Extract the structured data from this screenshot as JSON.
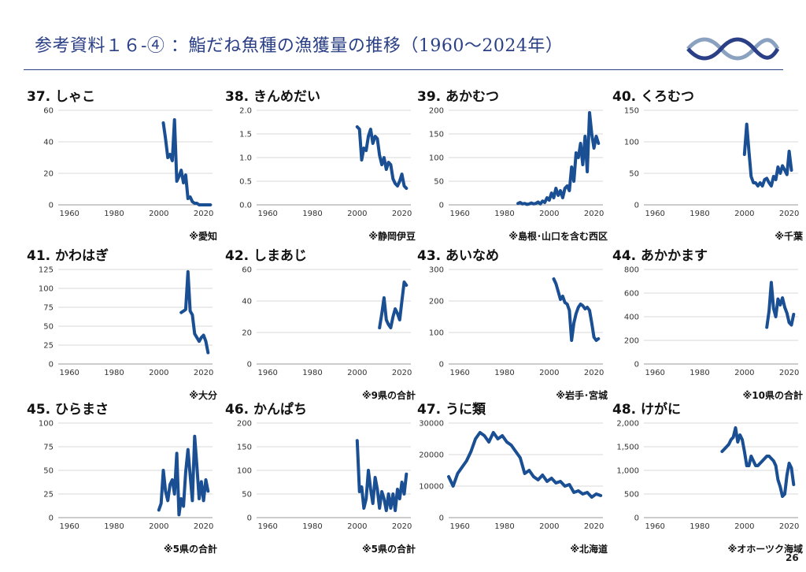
{
  "header": {
    "title": "参考資料１６-④ ：鮨だね魚種の漁獲量の推移（1960～2024年）",
    "page_number": "26"
  },
  "colors": {
    "line": "#1a4f93",
    "accent": "#2a3f86",
    "grid": "#d9d9d9"
  },
  "chart_data": [
    {
      "type": "line",
      "title": "37. しゃこ",
      "note": "※愛知",
      "xlim": [
        1955,
        2024
      ],
      "xticks": [
        1960,
        1980,
        2000,
        2020
      ],
      "ylim": [
        0,
        60
      ],
      "yticks": [
        0,
        20,
        40,
        60
      ],
      "ytick_labels": [
        "0",
        "20",
        "40",
        "60"
      ],
      "x": [
        2002,
        2003,
        2004,
        2005,
        2006,
        2007,
        2008,
        2009,
        2010,
        2011,
        2012,
        2013,
        2014,
        2015,
        2016,
        2017,
        2018,
        2019,
        2020,
        2021,
        2022,
        2023
      ],
      "y": [
        52,
        42,
        30,
        32,
        28,
        54,
        15,
        18,
        22,
        14,
        19,
        4,
        5,
        2,
        1,
        1,
        0,
        0,
        0,
        0,
        0,
        0
      ]
    },
    {
      "type": "line",
      "title": "38. きんめだい",
      "note": "※静岡伊豆",
      "xlim": [
        1955,
        2024
      ],
      "xticks": [
        1960,
        1980,
        2000,
        2020
      ],
      "ylim": [
        0,
        2
      ],
      "yticks": [
        0,
        0.5,
        1,
        1.5,
        2
      ],
      "ytick_labels": [
        "0.0",
        "0.5",
        "1.0",
        "1.5",
        "2.0"
      ],
      "x": [
        2000,
        2001,
        2002,
        2003,
        2004,
        2005,
        2006,
        2007,
        2008,
        2009,
        2010,
        2011,
        2012,
        2013,
        2014,
        2015,
        2016,
        2017,
        2018,
        2019,
        2020,
        2021,
        2022
      ],
      "y": [
        1.65,
        1.6,
        0.95,
        1.2,
        1.15,
        1.45,
        1.6,
        1.3,
        1.45,
        1.4,
        1.05,
        0.85,
        1.0,
        0.75,
        0.9,
        0.85,
        0.55,
        0.45,
        0.4,
        0.5,
        0.65,
        0.4,
        0.35
      ]
    },
    {
      "type": "line",
      "title": "39. あかむつ",
      "note": "※島根･山口を含む西区",
      "xlim": [
        1955,
        2024
      ],
      "xticks": [
        1960,
        1980,
        2000,
        2020
      ],
      "ylim": [
        0,
        200
      ],
      "yticks": [
        0,
        50,
        100,
        150,
        200
      ],
      "ytick_labels": [
        "0",
        "50",
        "100",
        "150",
        "200"
      ],
      "x": [
        1986,
        1987,
        1988,
        1989,
        1990,
        1991,
        1992,
        1993,
        1994,
        1995,
        1996,
        1997,
        1998,
        1999,
        2000,
        2001,
        2002,
        2003,
        2004,
        2005,
        2006,
        2007,
        2008,
        2009,
        2010,
        2011,
        2012,
        2013,
        2014,
        2015,
        2016,
        2017,
        2018,
        2019,
        2020,
        2021,
        2022
      ],
      "y": [
        3,
        5,
        2,
        3,
        1,
        2,
        4,
        2,
        3,
        6,
        2,
        8,
        5,
        15,
        10,
        25,
        15,
        35,
        20,
        30,
        15,
        35,
        40,
        30,
        80,
        50,
        110,
        100,
        130,
        85,
        145,
        70,
        195,
        150,
        120,
        145,
        130
      ]
    },
    {
      "type": "line",
      "title": "40. くろむつ",
      "note": "※千葉",
      "xlim": [
        1955,
        2024
      ],
      "xticks": [
        1960,
        1980,
        2000,
        2020
      ],
      "ylim": [
        0,
        150
      ],
      "yticks": [
        0,
        50,
        100,
        150
      ],
      "ytick_labels": [
        "0",
        "50",
        "100",
        "150"
      ],
      "x": [
        2000,
        2001,
        2002,
        2003,
        2004,
        2005,
        2006,
        2007,
        2008,
        2009,
        2010,
        2011,
        2012,
        2013,
        2014,
        2015,
        2016,
        2017,
        2018,
        2019,
        2020,
        2021
      ],
      "y": [
        80,
        128,
        85,
        45,
        35,
        35,
        30,
        35,
        30,
        40,
        42,
        35,
        30,
        45,
        40,
        60,
        50,
        62,
        55,
        48,
        85,
        55
      ]
    },
    {
      "type": "line",
      "title": "41. かわはぎ",
      "note": "※大分",
      "xlim": [
        1955,
        2024
      ],
      "xticks": [
        1960,
        1980,
        2000,
        2020
      ],
      "ylim": [
        0,
        125
      ],
      "yticks": [
        0,
        25,
        50,
        75,
        100,
        125
      ],
      "ytick_labels": [
        "0",
        "25",
        "50",
        "75",
        "100",
        "125"
      ],
      "x": [
        2010,
        2011,
        2012,
        2013,
        2014,
        2015,
        2016,
        2017,
        2018,
        2019,
        2020,
        2021,
        2022
      ],
      "y": [
        68,
        70,
        72,
        122,
        70,
        65,
        40,
        35,
        30,
        35,
        38,
        30,
        15
      ]
    },
    {
      "type": "line",
      "title": "42. しまあじ",
      "note": "※9県の合計",
      "xlim": [
        1955,
        2024
      ],
      "xticks": [
        1960,
        1980,
        2000,
        2020
      ],
      "ylim": [
        0,
        60
      ],
      "yticks": [
        0,
        20,
        40,
        60
      ],
      "ytick_labels": [
        "0",
        "20",
        "40",
        "60"
      ],
      "x": [
        2010,
        2011,
        2012,
        2013,
        2014,
        2015,
        2016,
        2017,
        2018,
        2019,
        2020,
        2021,
        2022
      ],
      "y": [
        23,
        32,
        42,
        28,
        25,
        23,
        30,
        35,
        32,
        28,
        40,
        52,
        50
      ]
    },
    {
      "type": "line",
      "title": "43. あいなめ",
      "note": "※岩手･宮城",
      "xlim": [
        1955,
        2024
      ],
      "xticks": [
        1960,
        1980,
        2000,
        2020
      ],
      "ylim": [
        0,
        300
      ],
      "yticks": [
        0,
        100,
        200,
        300
      ],
      "ytick_labels": [
        "0",
        "100",
        "200",
        "300"
      ],
      "x": [
        2002,
        2003,
        2004,
        2005,
        2006,
        2007,
        2008,
        2009,
        2010,
        2011,
        2012,
        2013,
        2014,
        2015,
        2016,
        2017,
        2018,
        2019,
        2020,
        2021,
        2022
      ],
      "y": [
        270,
        255,
        230,
        205,
        215,
        195,
        190,
        170,
        75,
        130,
        160,
        180,
        190,
        185,
        175,
        180,
        170,
        130,
        85,
        75,
        80
      ]
    },
    {
      "type": "line",
      "title": "44. あかかます",
      "note": "※10県の合計",
      "xlim": [
        1955,
        2024
      ],
      "xticks": [
        1960,
        1980,
        2000,
        2020
      ],
      "ylim": [
        0,
        800
      ],
      "yticks": [
        0,
        200,
        400,
        600,
        800
      ],
      "ytick_labels": [
        "0",
        "200",
        "400",
        "600",
        "800"
      ],
      "x": [
        2010,
        2011,
        2012,
        2013,
        2014,
        2015,
        2016,
        2017,
        2018,
        2019,
        2020,
        2021,
        2022
      ],
      "y": [
        310,
        450,
        690,
        470,
        400,
        550,
        500,
        560,
        480,
        430,
        350,
        330,
        420
      ]
    },
    {
      "type": "line",
      "title": "45. ひらまさ",
      "note": "※5県の合計",
      "xlim": [
        1955,
        2024
      ],
      "xticks": [
        1960,
        1980,
        2000,
        2020
      ],
      "ylim": [
        0,
        100
      ],
      "yticks": [
        0,
        25,
        50,
        75,
        100
      ],
      "ytick_labels": [
        "0",
        "25",
        "50",
        "75",
        "100"
      ],
      "x": [
        2000,
        2001,
        2002,
        2003,
        2004,
        2005,
        2006,
        2007,
        2008,
        2009,
        2010,
        2011,
        2012,
        2013,
        2014,
        2015,
        2016,
        2017,
        2018,
        2019,
        2020,
        2021,
        2022
      ],
      "y": [
        8,
        15,
        50,
        28,
        18,
        35,
        40,
        25,
        68,
        3,
        20,
        12,
        48,
        72,
        45,
        18,
        86,
        55,
        20,
        38,
        18,
        40,
        28
      ]
    },
    {
      "type": "line",
      "title": "46. かんぱち",
      "note": "※5県の合計",
      "xlim": [
        1955,
        2024
      ],
      "xticks": [
        1960,
        1980,
        2000,
        2020
      ],
      "ylim": [
        0,
        200
      ],
      "yticks": [
        0,
        50,
        100,
        150,
        200
      ],
      "ytick_labels": [
        "0",
        "50",
        "100",
        "150",
        "200"
      ],
      "x": [
        2000,
        2001,
        2002,
        2003,
        2004,
        2005,
        2006,
        2007,
        2008,
        2009,
        2010,
        2011,
        2012,
        2013,
        2014,
        2015,
        2016,
        2017,
        2018,
        2019,
        2020,
        2021,
        2022
      ],
      "y": [
        163,
        55,
        65,
        20,
        40,
        100,
        60,
        30,
        85,
        60,
        20,
        55,
        40,
        15,
        50,
        20,
        50,
        15,
        60,
        40,
        75,
        50,
        92
      ]
    },
    {
      "type": "line",
      "title": "47. うに類",
      "note": "※北海道",
      "xlim": [
        1955,
        2024
      ],
      "xticks": [
        1960,
        1980,
        2000,
        2020
      ],
      "ylim": [
        0,
        30000
      ],
      "yticks": [
        0,
        10000,
        20000,
        30000
      ],
      "ytick_labels": [
        "0",
        "10000",
        "20000",
        "30000"
      ],
      "x": [
        1955,
        1957,
        1959,
        1961,
        1963,
        1965,
        1967,
        1969,
        1971,
        1973,
        1975,
        1977,
        1979,
        1981,
        1983,
        1985,
        1987,
        1989,
        1991,
        1993,
        1995,
        1997,
        1999,
        2001,
        2003,
        2005,
        2007,
        2009,
        2011,
        2013,
        2015,
        2017,
        2019,
        2021,
        2023
      ],
      "y": [
        13000,
        10000,
        14000,
        16000,
        18000,
        21000,
        25000,
        27000,
        26000,
        24000,
        27000,
        25000,
        26000,
        24000,
        23000,
        21000,
        19000,
        14000,
        15000,
        13000,
        12000,
        13500,
        11500,
        12500,
        11000,
        11500,
        10000,
        10500,
        8000,
        8500,
        7500,
        8000,
        6500,
        7500,
        7000
      ]
    },
    {
      "type": "line",
      "title": "48. けがに",
      "note": "※オホーツク海域",
      "xlim": [
        1955,
        2024
      ],
      "xticks": [
        1960,
        1980,
        2000,
        2020
      ],
      "ylim": [
        0,
        2000
      ],
      "yticks": [
        0,
        500,
        1000,
        1500,
        2000
      ],
      "ytick_labels": [
        "0",
        "500",
        "1,000",
        "1,500",
        "2,000"
      ],
      "x": [
        1990,
        1991,
        1992,
        1993,
        1994,
        1995,
        1996,
        1997,
        1998,
        1999,
        2000,
        2001,
        2002,
        2003,
        2004,
        2005,
        2006,
        2007,
        2008,
        2009,
        2010,
        2011,
        2012,
        2013,
        2014,
        2015,
        2016,
        2017,
        2018,
        2019,
        2020,
        2021,
        2022
      ],
      "y": [
        1400,
        1450,
        1500,
        1550,
        1650,
        1700,
        1900,
        1600,
        1750,
        1650,
        1400,
        1100,
        1100,
        1300,
        1200,
        1100,
        1100,
        1150,
        1200,
        1250,
        1300,
        1300,
        1250,
        1200,
        1100,
        800,
        650,
        450,
        500,
        900,
        1150,
        1050,
        700
      ]
    }
  ]
}
